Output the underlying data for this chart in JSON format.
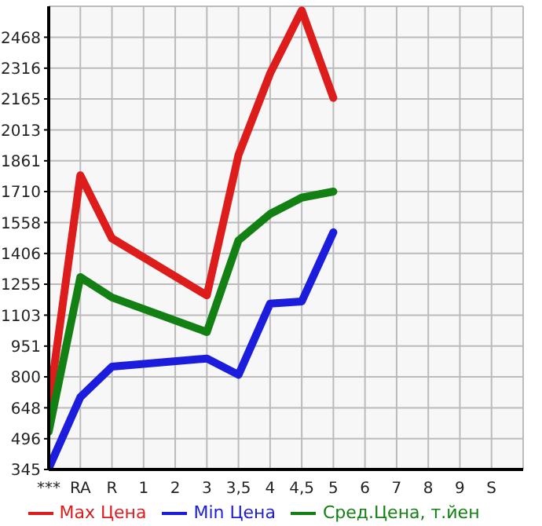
{
  "chart_data": {
    "type": "line",
    "categories": [
      "***",
      "RA",
      "R",
      "1",
      "2",
      "3",
      "3,5",
      "4",
      "4,5",
      "5",
      "6",
      "7",
      "8",
      "9",
      "S"
    ],
    "series": [
      {
        "name": "Max Цена",
        "color": "#dd1c1c",
        "values": [
          650,
          1790,
          1480,
          null,
          null,
          1200,
          1890,
          2290,
          2600,
          2170,
          null,
          null,
          null,
          null,
          null
        ]
      },
      {
        "name": "Min Цена",
        "color": "#1c1cdd",
        "values": [
          350,
          700,
          850,
          null,
          null,
          890,
          810,
          1160,
          1170,
          1510,
          null,
          null,
          null,
          null,
          null
        ]
      },
      {
        "name": "Сред.Цена, т.йен",
        "color": "#138013",
        "values": [
          530,
          1290,
          1190,
          null,
          null,
          1020,
          1470,
          1600,
          1680,
          1710,
          null,
          null,
          null,
          null,
          null
        ]
      }
    ],
    "ylim": [
      345,
      2620
    ],
    "yticks": [
      345,
      496,
      648,
      800,
      951,
      1103,
      1255,
      1406,
      1558,
      1710,
      1861,
      2013,
      2165,
      2316,
      2468
    ],
    "grid": true,
    "legend": "bottom",
    "marker": "none",
    "line_style": "solid"
  }
}
